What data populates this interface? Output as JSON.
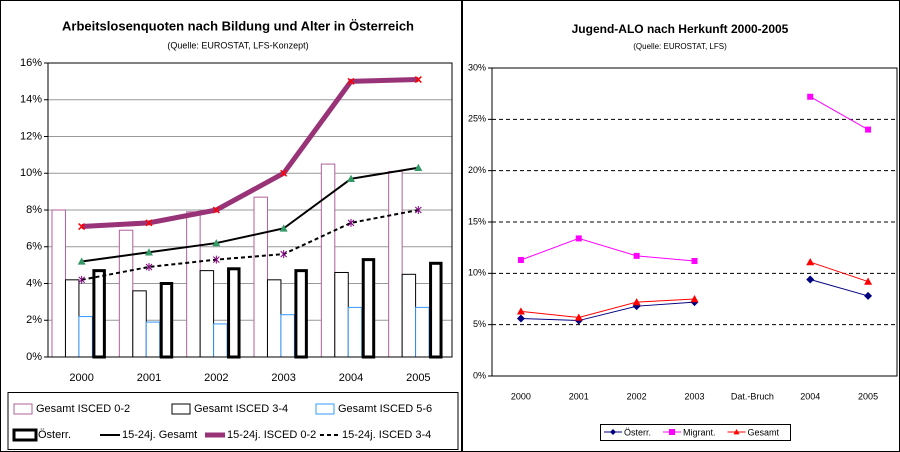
{
  "chart_data": [
    {
      "type": "bar",
      "title": "Arbeitslosenquoten nach Bildung und Alter in Österreich",
      "subtitle": "(Quelle: EUROSTAT, LFS-Konzept)",
      "categories": [
        "2000",
        "2001",
        "2002",
        "2003",
        "2004",
        "2005"
      ],
      "ylim": [
        0,
        16
      ],
      "yticks": [
        {
          "value": 0,
          "label": "0%"
        },
        {
          "value": 2,
          "label": "2%"
        },
        {
          "value": 4,
          "label": "4%"
        },
        {
          "value": 6,
          "label": "6%"
        },
        {
          "value": 8,
          "label": "8%"
        },
        {
          "value": 10,
          "label": "10%"
        },
        {
          "value": 12,
          "label": "12%"
        },
        {
          "value": 14,
          "label": "14%"
        },
        {
          "value": 16,
          "label": "16%"
        }
      ],
      "grid": true,
      "series": [
        {
          "name": "Gesamt ISCED 0-2",
          "type": "bar",
          "color": "#b0609a",
          "values": [
            8.0,
            6.9,
            7.9,
            8.7,
            10.5,
            10.1
          ]
        },
        {
          "name": "Gesamt ISCED 3-4",
          "type": "bar",
          "color": "#000000",
          "values": [
            4.2,
            3.6,
            4.7,
            4.2,
            4.6,
            4.5
          ]
        },
        {
          "name": "Gesamt ISCED 5-6",
          "type": "bar",
          "color": "#3399ff",
          "values": [
            2.2,
            1.9,
            1.8,
            2.3,
            2.7,
            2.7
          ]
        },
        {
          "name": "Österr.",
          "type": "bar",
          "color": "#000000",
          "values": [
            4.7,
            4.0,
            4.8,
            4.7,
            5.3,
            5.1
          ]
        },
        {
          "name": "15-24j. Gesamt",
          "type": "line",
          "color": "#000000",
          "marker": "triangle",
          "marker_color": "#339966",
          "values": [
            5.2,
            5.7,
            6.2,
            7.0,
            9.7,
            10.3
          ]
        },
        {
          "name": "15-24j. ISCED 0-2",
          "type": "line",
          "color": "#993377",
          "marker": "x",
          "marker_color": "#ff0000",
          "values": [
            7.1,
            7.3,
            8.0,
            10.0,
            15.0,
            15.1
          ]
        },
        {
          "name": "15-24j. ISCED 3-4",
          "type": "line",
          "color": "#000000",
          "dashed": true,
          "marker": "asterisk",
          "marker_color": "#800080",
          "values": [
            4.2,
            4.9,
            5.3,
            5.6,
            7.3,
            8.0
          ]
        }
      ]
    },
    {
      "type": "line",
      "title": "Jugend-ALO nach Herkunft 2000-2005",
      "subtitle": "(Quelle: EUROSTAT, LFS)",
      "categories": [
        "2000",
        "2001",
        "2002",
        "2003",
        "Dat.-Bruch",
        "2004",
        "2005"
      ],
      "ylim": [
        0,
        30
      ],
      "yticks": [
        {
          "value": 0,
          "label": "0%"
        },
        {
          "value": 5,
          "label": "5%"
        },
        {
          "value": 10,
          "label": "10%"
        },
        {
          "value": 15,
          "label": "15%"
        },
        {
          "value": 20,
          "label": "20%"
        },
        {
          "value": 25,
          "label": "25%"
        },
        {
          "value": 30,
          "label": "30%"
        }
      ],
      "grid": true,
      "series": [
        {
          "name": "Österr.",
          "color": "#000080",
          "marker": "diamond",
          "values": [
            5.6,
            5.4,
            6.8,
            7.2,
            null,
            9.4,
            7.8
          ]
        },
        {
          "name": "Migrant.",
          "color": "#ff00ff",
          "marker": "square",
          "values": [
            11.3,
            13.4,
            11.7,
            11.2,
            null,
            27.2,
            24.0
          ]
        },
        {
          "name": "Gesamt",
          "color": "#ff0000",
          "marker": "triangle",
          "values": [
            6.3,
            5.7,
            7.2,
            7.5,
            null,
            11.1,
            9.2
          ]
        }
      ]
    }
  ]
}
